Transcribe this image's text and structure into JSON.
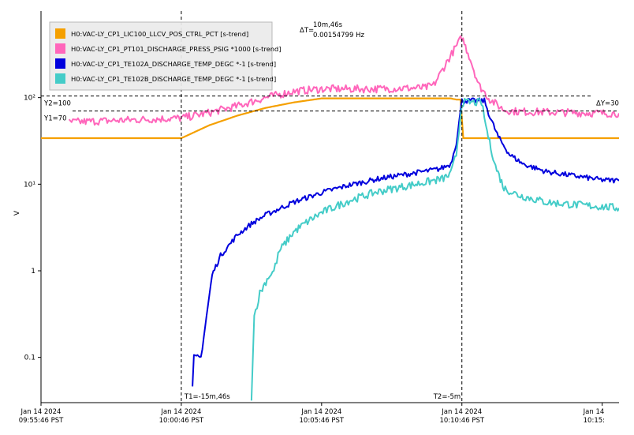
{
  "chart_data": {
    "type": "line",
    "y_scale": "log",
    "ylabel": "V",
    "ylim": [
      0.03,
      1000
    ],
    "y_ticks": [
      {
        "value": 100,
        "label": "10²"
      },
      {
        "value": 10,
        "label": "10¹"
      },
      {
        "value": 1,
        "label": "1"
      },
      {
        "value": 0.1,
        "label": "0.1"
      }
    ],
    "x_ticks": [
      {
        "line1": "Jan 14 2024",
        "line2": "09:55:46 PST"
      },
      {
        "line1": "Jan 14 2024",
        "line2": "10:00:46 PST"
      },
      {
        "line1": "Jan 14 2024",
        "line2": "10:05:46 PST"
      },
      {
        "line1": "Jan 14 2024",
        "line2": "10:10:46 PST"
      },
      {
        "line1": "Jan 14",
        "line2": "10:15:"
      }
    ],
    "x_range_minutes": [
      0,
      20.6
    ],
    "grid": false,
    "legend_position": "top-left",
    "cursors": {
      "t1_label": "T1=-15m,46s",
      "t2_label": "T2=-5m",
      "t1_minutes": 5,
      "t2_minutes": 15,
      "delta_t_label": "ΔT=",
      "delta_t_value": "10m,46s",
      "delta_t_freq": "0.00154799 Hz",
      "y1_label": "Y1=70",
      "y2_label": "Y2=100",
      "y1_value": 70,
      "y2_value": 100,
      "delta_y_label": "ΔY=30"
    },
    "series": [
      {
        "name": "H0:VAC-LY_CP1_LIC100_LLCV_POS_CTRL_PCT [s-trend]",
        "color": "#f5a000",
        "points": [
          [
            0,
            34
          ],
          [
            5,
            34
          ],
          [
            6,
            48
          ],
          [
            7,
            62
          ],
          [
            8,
            76
          ],
          [
            9,
            88
          ],
          [
            10,
            98
          ],
          [
            14.6,
            98
          ],
          [
            14.8,
            95
          ],
          [
            14.95,
            95
          ],
          [
            15.05,
            34
          ],
          [
            20.6,
            34
          ]
        ]
      },
      {
        "name": "H0:VAC-LY_CP1_PT101_DISCHARGE_PRESS_PSIG *1000 [s-trend]",
        "color": "#ff66bb",
        "points": [
          [
            1,
            52
          ],
          [
            3,
            55
          ],
          [
            5,
            58
          ],
          [
            6,
            67
          ],
          [
            7,
            80
          ],
          [
            8,
            100
          ],
          [
            9,
            118
          ],
          [
            10,
            126
          ],
          [
            12,
            126
          ],
          [
            13.7,
            130
          ],
          [
            14,
            140
          ],
          [
            14.5,
            270
          ],
          [
            15,
            500
          ],
          [
            15.3,
            280
          ],
          [
            15.6,
            140
          ],
          [
            16,
            95
          ],
          [
            16.5,
            72
          ],
          [
            17,
            69
          ],
          [
            18,
            68
          ],
          [
            20,
            66
          ],
          [
            20.6,
            66
          ]
        ]
      },
      {
        "name": "H0:VAC-LY_CP1_TE102A_DISCHARGE_TEMP_DEGC *-1 [s-trend]",
        "color": "#0000dd",
        "points": [
          [
            5.4,
            0.045
          ],
          [
            5.45,
            0.1
          ],
          [
            5.7,
            0.1
          ],
          [
            5.9,
            0.3
          ],
          [
            6.1,
            0.9
          ],
          [
            6.4,
            1.5
          ],
          [
            7,
            2.6
          ],
          [
            7.5,
            3.5
          ],
          [
            8,
            4.4
          ],
          [
            9,
            6.2
          ],
          [
            10,
            8
          ],
          [
            11,
            9.8
          ],
          [
            12,
            11.5
          ],
          [
            13,
            13
          ],
          [
            14.2,
            15
          ],
          [
            14.6,
            17
          ],
          [
            14.8,
            30
          ],
          [
            15,
            92
          ],
          [
            15.8,
            92
          ],
          [
            16,
            60
          ],
          [
            16.3,
            35
          ],
          [
            16.7,
            22
          ],
          [
            17.2,
            17
          ],
          [
            18,
            14
          ],
          [
            19,
            12.5
          ],
          [
            20,
            11.2
          ],
          [
            20.6,
            11
          ]
        ]
      },
      {
        "name": "H0:VAC-LY_CP1_TE102B_DISCHARGE_TEMP_DEGC *-1 [s-trend]",
        "color": "#44ccc8",
        "points": [
          [
            7.5,
            0.035
          ],
          [
            7.6,
            0.3
          ],
          [
            7.8,
            0.55
          ],
          [
            8.1,
            0.85
          ],
          [
            8.3,
            1
          ],
          [
            8.5,
            1.7
          ],
          [
            9,
            2.8
          ],
          [
            9.5,
            3.7
          ],
          [
            10,
            4.7
          ],
          [
            11,
            6.5
          ],
          [
            12,
            8.2
          ],
          [
            13,
            9.5
          ],
          [
            14.3,
            11.5
          ],
          [
            14.6,
            13
          ],
          [
            14.8,
            22
          ],
          [
            15,
            88
          ],
          [
            15.7,
            88
          ],
          [
            15.9,
            40
          ],
          [
            16.2,
            16
          ],
          [
            16.5,
            9
          ],
          [
            17,
            7.5
          ],
          [
            18,
            6.2
          ],
          [
            19,
            5.8
          ],
          [
            20,
            5.5
          ],
          [
            20.6,
            5.3
          ]
        ]
      }
    ]
  }
}
